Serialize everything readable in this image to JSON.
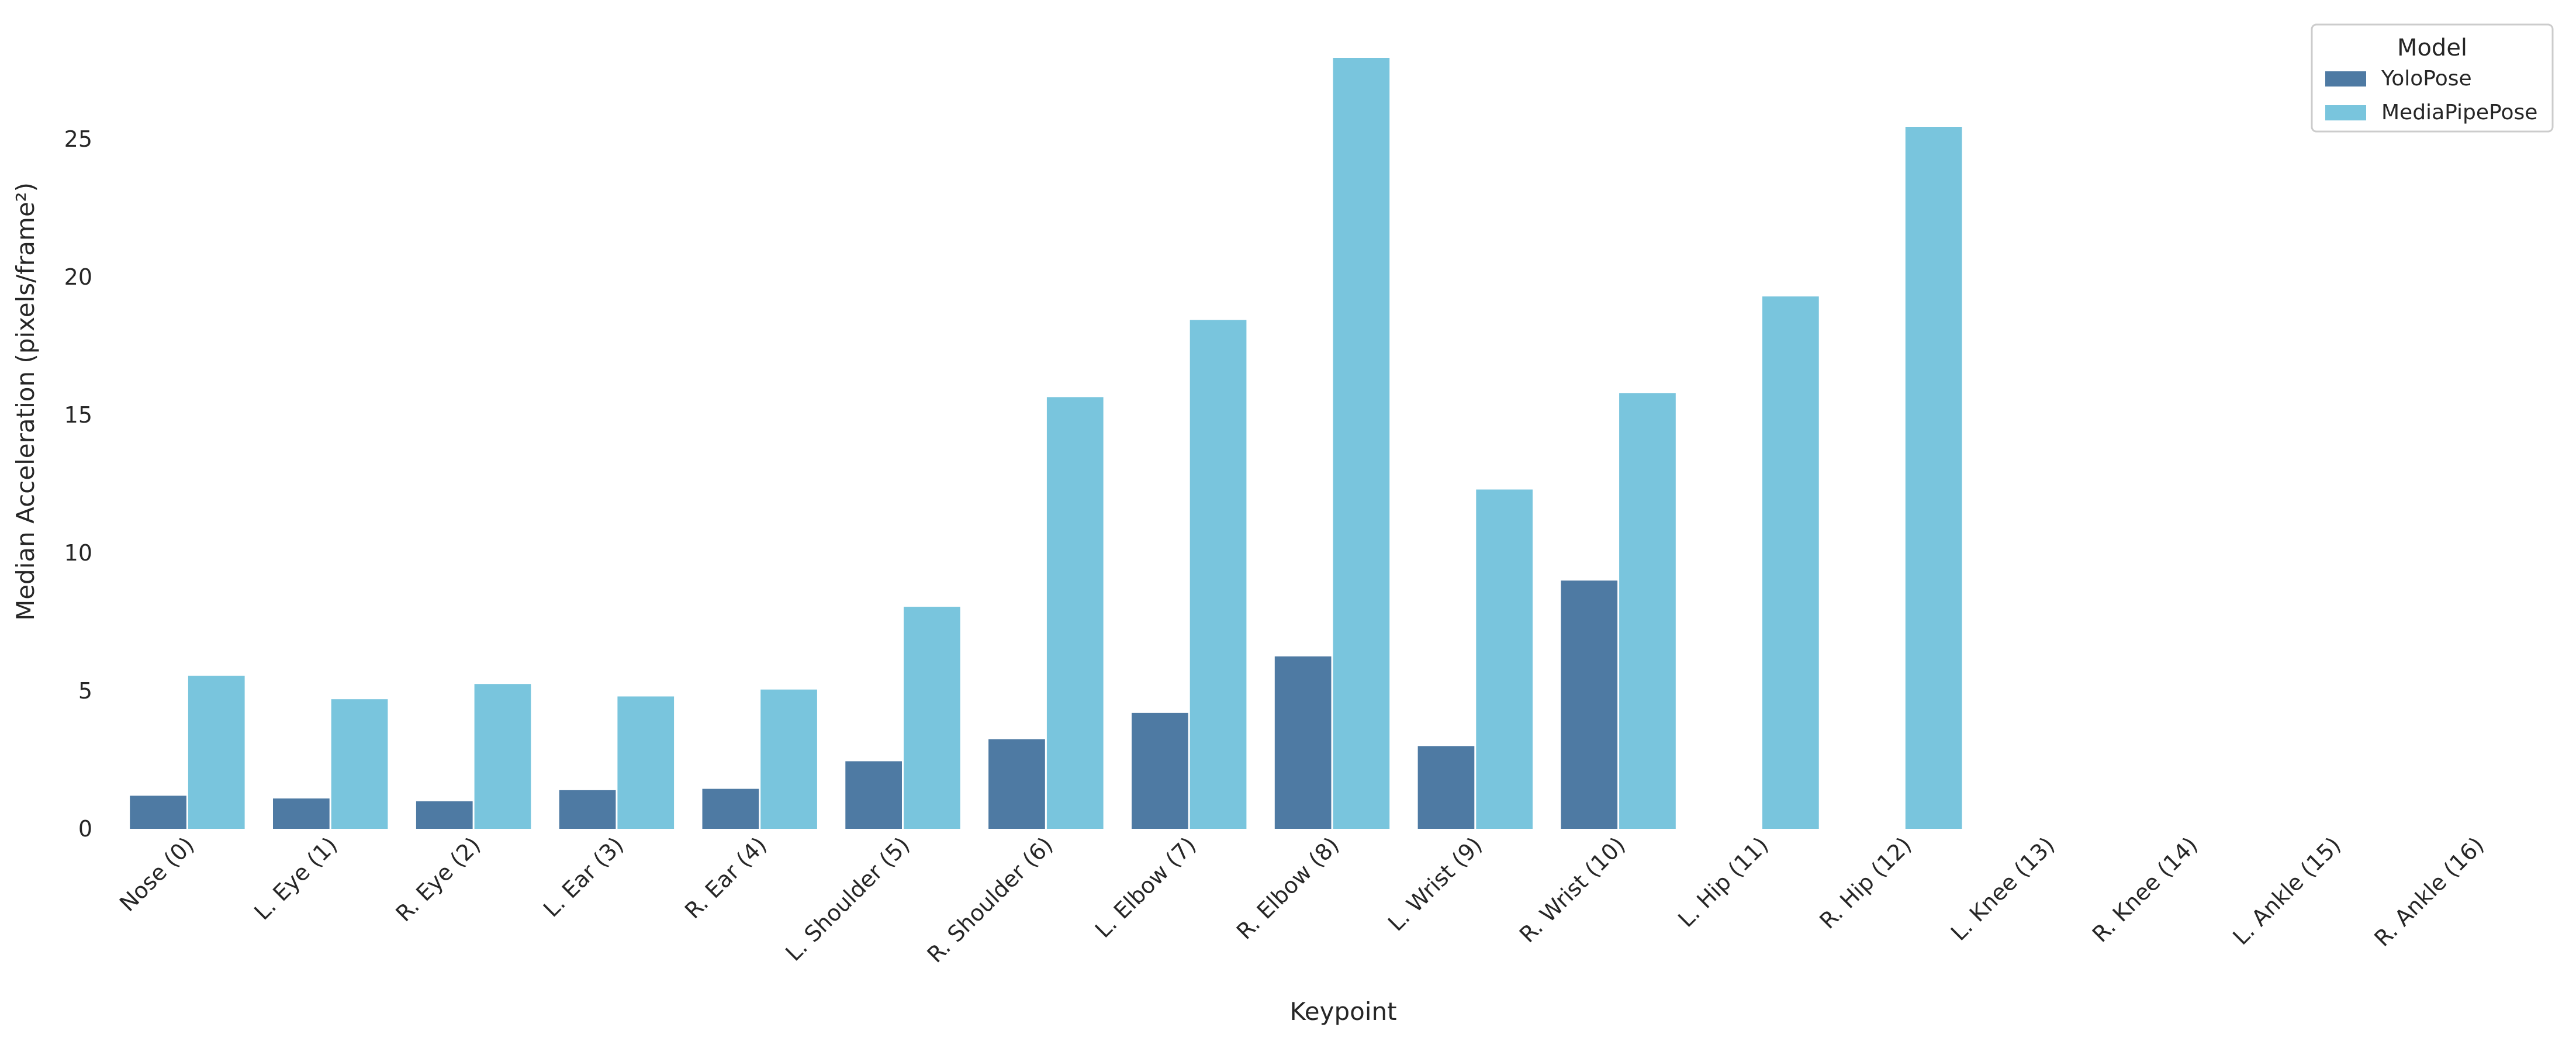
{
  "chart_data": {
    "type": "bar",
    "xlabel": "Keypoint",
    "ylabel": "Median Acceleration (pixels/frame²)",
    "categories": [
      "Nose (0)",
      "L. Eye (1)",
      "R. Eye (2)",
      "L. Ear (3)",
      "R. Ear (4)",
      "L. Shoulder (5)",
      "R. Shoulder (6)",
      "L. Elbow (7)",
      "R. Elbow (8)",
      "L. Wrist (9)",
      "R. Wrist (10)",
      "L. Hip (11)",
      "R. Hip (12)",
      "L. Knee (13)",
      "R. Knee (14)",
      "L. Ankle (15)",
      "R. Ankle (16)"
    ],
    "series": [
      {
        "name": "YoloPose",
        "color": "#4e7aa3",
        "values": [
          1.2,
          1.1,
          1.0,
          1.4,
          1.45,
          2.45,
          3.25,
          4.2,
          6.25,
          3.0,
          9.0,
          null,
          null,
          null,
          null,
          null,
          null
        ]
      },
      {
        "name": "MediaPipePose",
        "color": "#79c5dd",
        "values": [
          5.55,
          4.7,
          5.25,
          4.8,
          5.05,
          8.05,
          15.65,
          18.45,
          27.95,
          12.3,
          15.8,
          19.3,
          25.45,
          null,
          null,
          null,
          null
        ]
      }
    ],
    "yticks": [
      0,
      5,
      10,
      15,
      20,
      25
    ],
    "ylim": [
      0,
      29.2
    ],
    "grid": false,
    "legend": {
      "title": "Model",
      "placement": "top-right"
    }
  }
}
